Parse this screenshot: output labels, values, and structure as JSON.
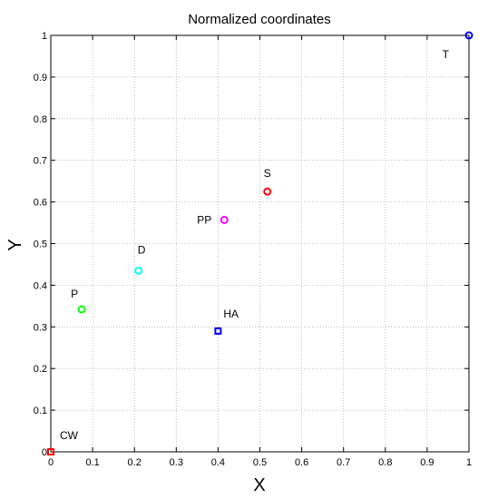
{
  "chart_data": {
    "type": "scatter",
    "title": "Normalized coordinates",
    "xlabel": "X",
    "ylabel": "Y",
    "xlim": [
      0,
      1
    ],
    "ylim": [
      0,
      1
    ],
    "xticks": [
      "0",
      "0.1",
      "0.2",
      "0.3",
      "0.4",
      "0.5",
      "0.6",
      "0.7",
      "0.8",
      "0.9",
      "1"
    ],
    "yticks": [
      "0",
      "0.1",
      "0.2",
      "0.3",
      "0.4",
      "0.5",
      "0.6",
      "0.7",
      "0.8",
      "0.9",
      "1"
    ],
    "grid": true,
    "points": [
      {
        "label": "CW",
        "x": 0.0,
        "y": 0.0,
        "marker": "square",
        "color": "#ff0000"
      },
      {
        "label": "P",
        "x": 0.074,
        "y": 0.342,
        "marker": "circle",
        "color": "#00ff00"
      },
      {
        "label": "D",
        "x": 0.21,
        "y": 0.435,
        "marker": "circle",
        "color": "#00ffff"
      },
      {
        "label": "HA",
        "x": 0.4,
        "y": 0.29,
        "marker": "square",
        "color": "#0000ff"
      },
      {
        "label": "PP",
        "x": 0.415,
        "y": 0.557,
        "marker": "circle",
        "color": "#ff00ff"
      },
      {
        "label": "S",
        "x": 0.518,
        "y": 0.625,
        "marker": "circle",
        "color": "#ff0000"
      },
      {
        "label": "T",
        "x": 1.0,
        "y": 1.0,
        "marker": "circle",
        "color": "#0000ff"
      }
    ]
  }
}
